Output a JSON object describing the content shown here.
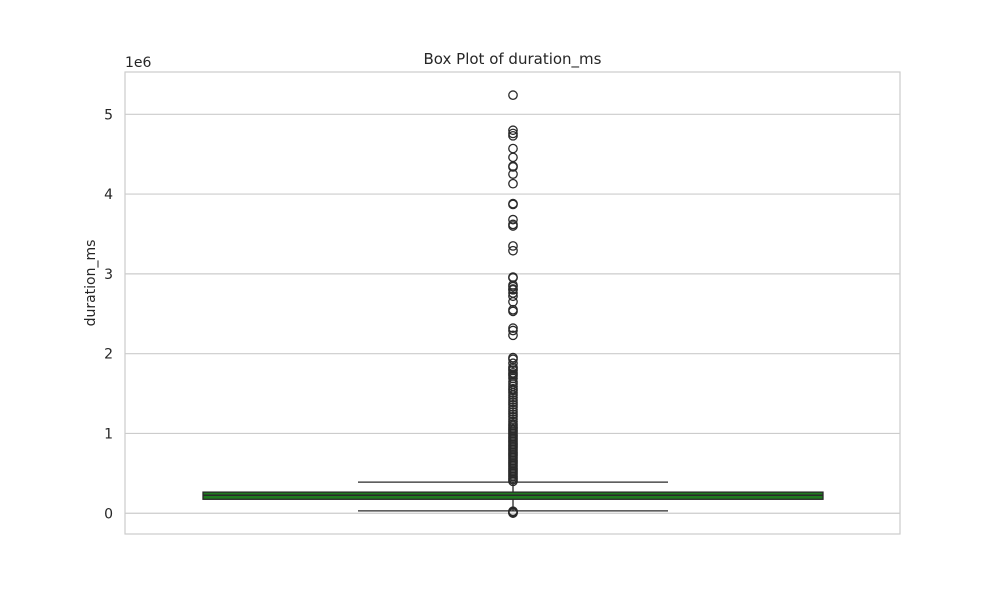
{
  "chart_data": {
    "type": "box",
    "title": "Box Plot of duration_ms",
    "xlabel": "",
    "ylabel": "duration_ms",
    "offset_text": "1e6",
    "scale_factor": 1000000,
    "ylim": [
      -260000,
      5530000
    ],
    "yticks": [
      0,
      1,
      2,
      3,
      4,
      5
    ],
    "grid": true,
    "colors": {
      "box_fill": "#1f7a1f",
      "box_edge": "#2a2a2a",
      "grid": "#cccccc",
      "frame": "#cccccc",
      "text": "#262626"
    },
    "box": {
      "q1": 175000,
      "median": 225000,
      "q3": 265000,
      "whisker_low": 30000,
      "whisker_high": 390000
    },
    "outliers_high": [
      5240000,
      4800000,
      4760000,
      4730000,
      4570000,
      4460000,
      4350000,
      4340000,
      4250000,
      4130000,
      3880000,
      3870000,
      3680000,
      3620000,
      3600000,
      3350000,
      3290000,
      2960000,
      2950000,
      2860000,
      2840000,
      2810000,
      2800000,
      2760000,
      2720000,
      2650000,
      2550000,
      2530000,
      2320000,
      2290000,
      2230000,
      1950000,
      1930000,
      1880000,
      1830000,
      1810000,
      1790000,
      1760000,
      1740000,
      1720000,
      1690000,
      1650000,
      1620000,
      1590000,
      1560000,
      1540000,
      1510000,
      1480000,
      1450000,
      1420000,
      1390000,
      1360000,
      1330000,
      1300000,
      1270000,
      1240000,
      1210000,
      1180000,
      1150000,
      1120000,
      1100000,
      1080000,
      1060000,
      1040000,
      1020000,
      1000000,
      980000,
      960000,
      940000,
      920000,
      900000,
      880000,
      860000,
      840000,
      820000,
      800000,
      780000,
      760000,
      740000,
      720000,
      700000,
      680000,
      660000,
      640000,
      620000,
      600000,
      580000,
      560000,
      540000,
      520000,
      500000,
      480000,
      460000,
      440000,
      420000,
      400000
    ],
    "outliers_low": [
      25000,
      18000,
      12000,
      6000,
      2000
    ]
  }
}
